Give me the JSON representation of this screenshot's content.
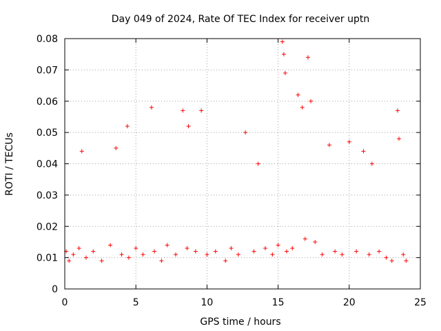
{
  "chart_data": {
    "type": "scatter",
    "title": "Day 049 of 2024, Rate Of TEC Index for receiver uptn",
    "xlabel": "GPS time / hours",
    "ylabel": "ROTI / TECUs",
    "xlim": [
      0,
      25
    ],
    "ylim": [
      0,
      0.08
    ],
    "grid": true,
    "marker": "plus",
    "series_color": "#ff0000",
    "x_ticks": [
      0,
      5,
      10,
      15,
      20,
      25
    ],
    "x_tick_labels": [
      "0",
      "5",
      "10",
      "15",
      "20",
      "25"
    ],
    "y_ticks": [
      0,
      0.01,
      0.02,
      0.03,
      0.04,
      0.05,
      0.06,
      0.07,
      0.08
    ],
    "y_tick_labels": [
      "0",
      "0.01",
      "0.02",
      "0.03",
      "0.04",
      "0.05",
      "0.06",
      "0.07",
      "0.08"
    ],
    "series": [
      {
        "x": [
          0.1,
          0.3,
          0.6,
          1.0,
          1.2,
          1.5,
          2.0,
          2.6,
          3.2,
          3.6,
          4.0,
          4.4,
          4.5,
          5.0,
          5.5,
          6.1,
          6.3,
          6.8,
          7.2,
          7.8,
          8.3,
          8.6,
          8.7,
          9.2,
          9.6,
          10.0,
          10.6,
          11.3,
          11.7,
          12.2,
          12.7,
          13.3,
          13.6,
          14.1,
          14.6,
          15.0,
          15.3,
          15.4,
          15.5,
          15.6,
          16.0,
          16.4,
          16.7,
          16.9,
          17.1,
          17.3,
          17.6,
          18.1,
          18.6,
          19.0,
          19.5,
          20.0,
          20.5,
          21.0,
          21.4,
          21.6,
          22.1,
          22.6,
          23.0,
          23.4,
          23.5,
          23.8,
          24.0
        ],
        "y": [
          0.012,
          0.009,
          0.011,
          0.013,
          0.044,
          0.01,
          0.012,
          0.009,
          0.014,
          0.045,
          0.011,
          0.052,
          0.01,
          0.013,
          0.011,
          0.058,
          0.012,
          0.009,
          0.014,
          0.011,
          0.057,
          0.013,
          0.052,
          0.012,
          0.057,
          0.011,
          0.012,
          0.009,
          0.013,
          0.011,
          0.05,
          0.012,
          0.04,
          0.013,
          0.011,
          0.014,
          0.079,
          0.075,
          0.069,
          0.012,
          0.013,
          0.062,
          0.058,
          0.016,
          0.074,
          0.06,
          0.015,
          0.011,
          0.046,
          0.012,
          0.011,
          0.047,
          0.012,
          0.044,
          0.011,
          0.04,
          0.012,
          0.01,
          0.009,
          0.057,
          0.048,
          0.011,
          0.009
        ]
      }
    ]
  }
}
